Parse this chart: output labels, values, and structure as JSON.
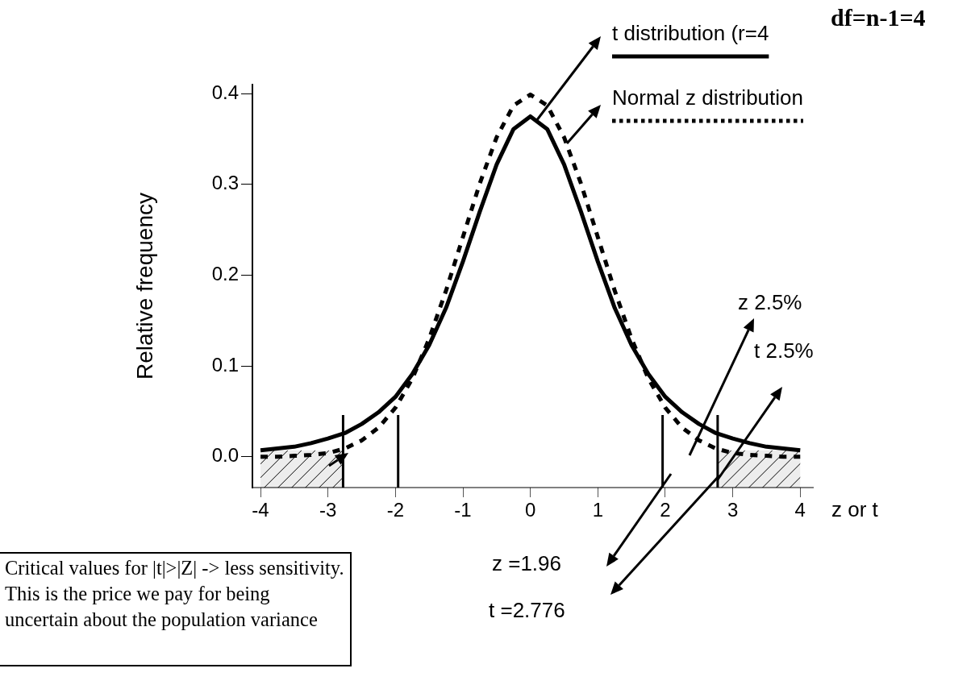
{
  "chart_data": {
    "type": "line",
    "xlabel": "z or t",
    "ylabel": "Relative frequency",
    "xlim": [
      -4.12,
      4.2
    ],
    "xticks": [
      -4,
      -3,
      -2,
      -1,
      0,
      1,
      2,
      3,
      4
    ],
    "ylim": [
      -0.034,
      0.41
    ],
    "yticks": [
      {
        "value": 0,
        "label": "0.0"
      },
      0.1,
      0.2,
      0.3,
      0.4
    ],
    "grid": false,
    "legend": "top right",
    "marker": "none",
    "x": [
      -4,
      -3.75,
      -3.5,
      -3.25,
      -3,
      -2.75,
      -2.5,
      -2.25,
      -2,
      -1.75,
      -1.5,
      -1.25,
      -1,
      -0.75,
      -0.5,
      -0.25,
      0,
      0.25,
      0.5,
      0.75,
      1,
      1.25,
      1.5,
      1.75,
      2,
      2.25,
      2.5,
      2.75,
      3,
      3.25,
      3.5,
      3.75,
      4
    ],
    "series": [
      {
        "name": "t distribution (r=4",
        "color": "#000000",
        "line_style": "solid",
        "values": [
          0.007,
          0.009,
          0.011,
          0.015,
          0.02,
          0.026,
          0.036,
          0.049,
          0.066,
          0.091,
          0.123,
          0.164,
          0.215,
          0.27,
          0.322,
          0.361,
          0.375,
          0.361,
          0.322,
          0.27,
          0.215,
          0.164,
          0.123,
          0.091,
          0.066,
          0.049,
          0.036,
          0.026,
          0.02,
          0.015,
          0.011,
          0.009,
          0.007
        ]
      },
      {
        "name": "Normal z distribution",
        "color": "#000000",
        "line_style": "dashed",
        "values": [
          0.0,
          0.0,
          0.001,
          0.002,
          0.004,
          0.009,
          0.018,
          0.032,
          0.054,
          0.086,
          0.13,
          0.183,
          0.242,
          0.301,
          0.352,
          0.387,
          0.399,
          0.387,
          0.352,
          0.301,
          0.242,
          0.183,
          0.13,
          0.086,
          0.054,
          0.032,
          0.018,
          0.009,
          0.004,
          0.002,
          0.001,
          0.0,
          0.0
        ]
      }
    ],
    "ref_lines": [
      {
        "axis": "x",
        "value": -2.776
      },
      {
        "axis": "x",
        "value": -1.96
      },
      {
        "axis": "x",
        "value": 1.96
      },
      {
        "axis": "x",
        "value": 2.776
      }
    ],
    "bands": [
      {
        "axis": "x",
        "from": -4,
        "to": -2.776
      },
      {
        "axis": "x",
        "from": 2.776,
        "to": 4
      }
    ],
    "annotations": [
      "df=n-1=4",
      "z 2.5%",
      "t 2.5%",
      "z =1.96",
      "t =2.776",
      "Critical values for |t|>|Z| -> less sensitivity. This is the price we pay for being uncertain about the population variance"
    ]
  }
}
